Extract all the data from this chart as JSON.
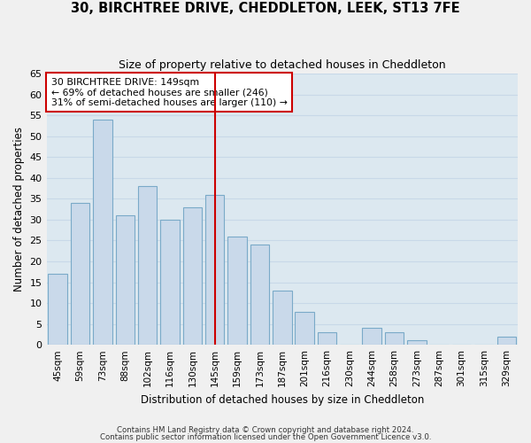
{
  "title_line1": "30, BIRCHTREE DRIVE, CHEDDLETON, LEEK, ST13 7FE",
  "title_line2": "Size of property relative to detached houses in Cheddleton",
  "xlabel": "Distribution of detached houses by size in Cheddleton",
  "ylabel": "Number of detached properties",
  "categories": [
    "45sqm",
    "59sqm",
    "73sqm",
    "88sqm",
    "102sqm",
    "116sqm",
    "130sqm",
    "145sqm",
    "159sqm",
    "173sqm",
    "187sqm",
    "201sqm",
    "216sqm",
    "230sqm",
    "244sqm",
    "258sqm",
    "273sqm",
    "287sqm",
    "301sqm",
    "315sqm",
    "329sqm"
  ],
  "values": [
    17,
    34,
    54,
    31,
    38,
    30,
    33,
    36,
    26,
    24,
    13,
    8,
    3,
    0,
    4,
    3,
    1,
    0,
    0,
    0,
    2
  ],
  "bar_color": "#c9d9ea",
  "bar_edge_color": "#7aaac8",
  "vline_index": 7,
  "vline_color": "#cc0000",
  "annotation_line1": "30 BIRCHTREE DRIVE: 149sqm",
  "annotation_line2": "← 69% of detached houses are smaller (246)",
  "annotation_line3": "31% of semi-detached houses are larger (110) →",
  "annotation_box_color": "#ffffff",
  "annotation_box_edge": "#cc0000",
  "ylim": [
    0,
    65
  ],
  "yticks": [
    0,
    5,
    10,
    15,
    20,
    25,
    30,
    35,
    40,
    45,
    50,
    55,
    60,
    65
  ],
  "grid_color": "#c8d8e8",
  "plot_bg_color": "#dce8f0",
  "fig_bg_color": "#f0f0f0",
  "footer_line1": "Contains HM Land Registry data © Crown copyright and database right 2024.",
  "footer_line2": "Contains public sector information licensed under the Open Government Licence v3.0."
}
